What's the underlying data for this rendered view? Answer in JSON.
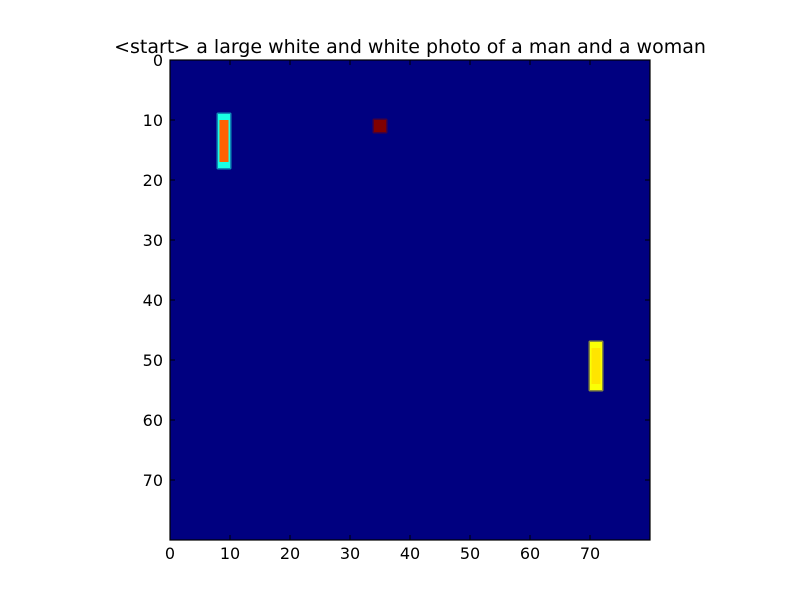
{
  "chart_data": {
    "type": "heatmap",
    "title": "<start> a large white and white photo of a man and a woman",
    "xlabel": "",
    "ylabel": "",
    "xlim": [
      0,
      80
    ],
    "ylim": [
      80,
      0
    ],
    "grid": false,
    "colormap": "jet",
    "background_value": 0.0,
    "x_ticks": [
      0,
      10,
      20,
      30,
      40,
      50,
      60,
      70
    ],
    "y_ticks": [
      0,
      10,
      20,
      30,
      40,
      50,
      60,
      70
    ],
    "x_tick_labels": [
      "0",
      "10",
      "20",
      "30",
      "40",
      "50",
      "60",
      "70"
    ],
    "y_tick_labels": [
      "0",
      "10",
      "20",
      "30",
      "40",
      "50",
      "60",
      "70"
    ],
    "hotspots": [
      {
        "x0": 8.0,
        "x1": 10.0,
        "y0": 9.0,
        "y1": 18.0,
        "value": 0.78,
        "edge_value": 0.4
      },
      {
        "x0": 34.0,
        "x1": 36.0,
        "y0": 10.0,
        "y1": 12.0,
        "value": 1.0,
        "edge_value": 1.0
      },
      {
        "x0": 70.0,
        "x1": 72.0,
        "y0": 47.0,
        "y1": 55.0,
        "value": 0.65,
        "edge_value": 0.62
      }
    ]
  }
}
